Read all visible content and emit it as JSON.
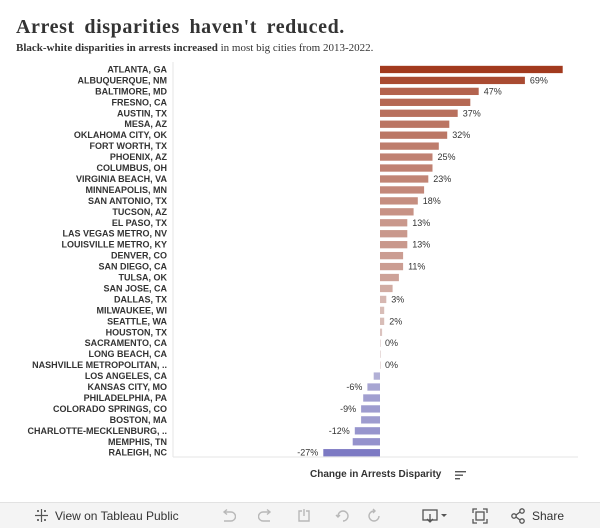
{
  "header": {
    "title": "Arrest disparities haven't reduced.",
    "subtitle_bold": "Black-white disparities in arrests increased",
    "subtitle_rest": " in most big cities from 2013-2022."
  },
  "chart_data": {
    "type": "bar",
    "orientation": "horizontal",
    "xlabel": "Change in Arrests Disparity",
    "categories": [
      "ATLANTA, GA",
      "ALBUQUERQUE, NM",
      "BALTIMORE, MD",
      "FRESNO, CA",
      "AUSTIN, TX",
      "MESA, AZ",
      "OKLAHOMA CITY, OK",
      "FORT WORTH, TX",
      "PHOENIX, AZ",
      "COLUMBUS, OH",
      "VIRGINIA BEACH, VA",
      "MINNEAPOLIS, MN",
      "SAN ANTONIO, TX",
      "TUCSON, AZ",
      "EL PASO, TX",
      "LAS VEGAS METRO, NV",
      "LOUISVILLE METRO, KY",
      "DENVER, CO",
      "SAN DIEGO, CA",
      "TULSA, OK",
      "SAN JOSE, CA",
      "DALLAS, TX",
      "MILWAUKEE, WI",
      "SEATTLE, WA",
      "HOUSTON, TX",
      "SACRAMENTO, CA",
      "LONG BEACH, CA",
      "NASHVILLE METROPOLITAN, ..",
      "LOS ANGELES, CA",
      "KANSAS CITY, MO",
      "PHILADELPHIA, PA",
      "COLORADO SPRINGS, CO",
      "BOSTON, MA",
      "CHARLOTTE-MECKLENBURG, ..",
      "MEMPHIS, TN",
      "RALEIGH, NC"
    ],
    "values": [
      87,
      69,
      47,
      43,
      37,
      33,
      32,
      28,
      25,
      25,
      23,
      21,
      18,
      16,
      13,
      13,
      13,
      11,
      11,
      9,
      6,
      3,
      2,
      2,
      1,
      0,
      0,
      0,
      -3,
      -6,
      -8,
      -9,
      -9,
      -12,
      -13,
      -27
    ],
    "value_labels": [
      "",
      "69%",
      "47%",
      "",
      "37%",
      "",
      "32%",
      "",
      "25%",
      "",
      "23%",
      "",
      "18%",
      "",
      "13%",
      "",
      "13%",
      "",
      "11%",
      "",
      "",
      "3%",
      "",
      "2%",
      "",
      "0%",
      "",
      "0%",
      "",
      "-6%",
      "",
      "-9%",
      "",
      "-12%",
      "",
      "-27%"
    ],
    "xlim": [
      -28,
      88
    ],
    "colors": {
      "positive_strong": "#a23a1e",
      "positive_light": "#e2d4d2",
      "negative_light": "#cdcce0",
      "negative_strong": "#7c79c3"
    }
  },
  "toolbar": {
    "view_label": "View on Tableau Public",
    "share_label": "Share"
  }
}
